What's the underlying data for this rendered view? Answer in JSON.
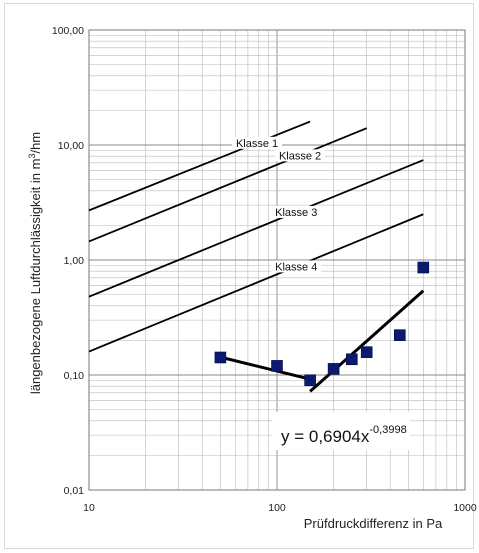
{
  "chart_data": {
    "type": "scatter",
    "xscale": "log",
    "yscale": "log",
    "xlim": [
      10,
      1000
    ],
    "ylim": [
      0.01,
      100
    ],
    "xlabel": "Prüfdruckdifferenz in Pa",
    "ylabel": "längenbezogene Luftdurchlässigkeit in m³/hm",
    "ylabel_main": "längenbezogene Luftdurchlässigkeit in m",
    "ylabel_sup": "3",
    "ylabel_end": "/hm",
    "xticks": [
      "10",
      "100",
      "1000"
    ],
    "xtick_values": [
      10,
      100,
      1000
    ],
    "yticks": [
      "0,01",
      "0,10",
      "1,00",
      "10,00",
      "100,00"
    ],
    "ytick_values": [
      0.01,
      0.1,
      1,
      10,
      100
    ],
    "grid": true,
    "class_lines": [
      {
        "name": "Klasse 1",
        "x": [
          10,
          150
        ],
        "y": [
          2.7,
          16
        ]
      },
      {
        "name": "Klasse 2",
        "x": [
          10,
          300
        ],
        "y": [
          1.45,
          14
        ]
      },
      {
        "name": "Klasse 3",
        "x": [
          10,
          600
        ],
        "y": [
          0.48,
          7.4
        ]
      },
      {
        "name": "Klasse 4",
        "x": [
          10,
          600
        ],
        "y": [
          0.16,
          2.5
        ]
      }
    ],
    "series": [
      {
        "x": [
          50,
          100,
          150,
          200,
          250,
          300,
          450,
          600
        ],
        "y": [
          0.142,
          0.12,
          0.09,
          0.113,
          0.137,
          0.158,
          0.222,
          0.86
        ]
      }
    ],
    "trend_lines": [
      {
        "x": [
          50,
          150
        ],
        "y": [
          0.143,
          0.092
        ]
      },
      {
        "x": [
          150,
          600
        ],
        "y": [
          0.072,
          0.54
        ]
      }
    ],
    "annotation": {
      "base": "y = 0,6904x",
      "exponent": "-0,3998"
    }
  }
}
